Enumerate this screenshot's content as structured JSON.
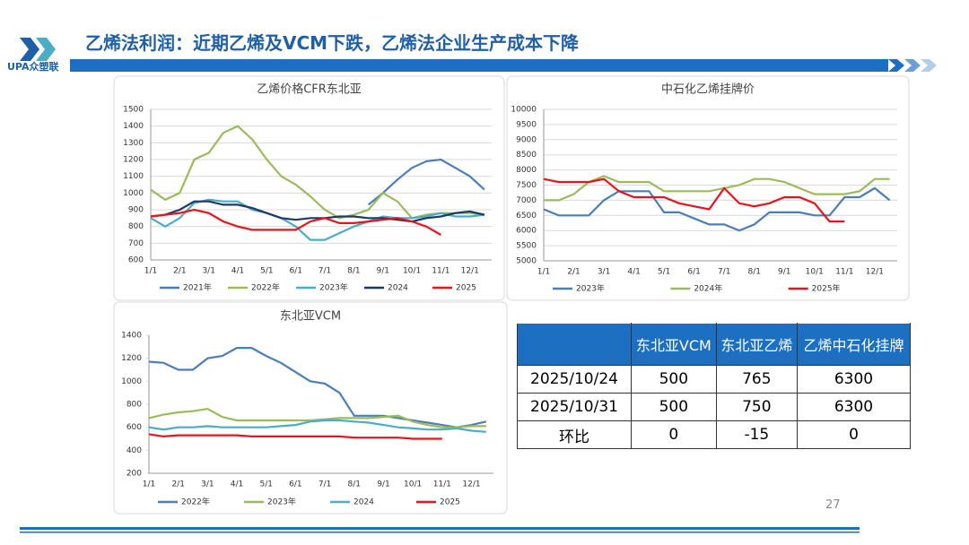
{
  "header": {
    "title": "乙烯法利润：近期乙烯及VCM下跌，乙烯法企业生产成本下降",
    "logo": "UPA众塑联"
  },
  "chart_data": [
    {
      "type": "line",
      "title": "乙烯价格CFR东北亚",
      "categories": [
        "1/1",
        null,
        "2/1",
        null,
        "3/1",
        null,
        "4/1",
        null,
        "5/1",
        null,
        "6/1",
        null,
        "7/1",
        null,
        "8/1",
        null,
        "9/1",
        null,
        "10/1",
        null,
        "11/1",
        null,
        "12/1",
        null
      ],
      "ylim": [
        600,
        1500
      ],
      "yticks": [
        600,
        700,
        800,
        900,
        1000,
        1100,
        1200,
        1300,
        1400,
        1500
      ],
      "grid": true,
      "legend": "bottom",
      "series": [
        {
          "name": "2021年",
          "color": "#4a7ebb",
          "values": [
            null,
            null,
            null,
            null,
            null,
            null,
            null,
            null,
            null,
            null,
            null,
            null,
            null,
            null,
            null,
            930,
            1000,
            1080,
            1150,
            1190,
            1200,
            1150,
            1100,
            1020
          ]
        },
        {
          "name": "2022年",
          "color": "#9bbb59",
          "values": [
            1020,
            960,
            1000,
            1200,
            1240,
            1360,
            1400,
            1320,
            1200,
            1100,
            1050,
            980,
            900,
            850,
            870,
            900,
            1000,
            950,
            850,
            870,
            880,
            880,
            880,
            870
          ]
        },
        {
          "name": "2023年",
          "color": "#4bacc6",
          "values": [
            850,
            800,
            850,
            940,
            960,
            950,
            950,
            900,
            880,
            850,
            800,
            720,
            720,
            760,
            800,
            830,
            860,
            850,
            850,
            860,
            880,
            860,
            860,
            870
          ]
        },
        {
          "name": "2024",
          "color": "#1f3864",
          "values": [
            860,
            870,
            900,
            950,
            950,
            930,
            930,
            910,
            880,
            850,
            840,
            850,
            850,
            860,
            860,
            850,
            850,
            840,
            830,
            850,
            860,
            880,
            890,
            870
          ]
        },
        {
          "name": "2025",
          "color": "#e8141b",
          "values": [
            860,
            870,
            880,
            900,
            880,
            830,
            800,
            780,
            780,
            780,
            780,
            830,
            850,
            820,
            820,
            830,
            840,
            850,
            830,
            800,
            750,
            null,
            null,
            null
          ]
        }
      ]
    },
    {
      "type": "line",
      "title": "中石化乙烯挂牌价",
      "categories": [
        "1/1",
        null,
        "2/1",
        null,
        "3/1",
        null,
        "4/1",
        null,
        "5/1",
        null,
        "6/1",
        null,
        "7/1",
        null,
        "8/1",
        null,
        "9/1",
        null,
        "10/1",
        null,
        "11/1",
        null,
        "12/1",
        null
      ],
      "ylim": [
        5000,
        10000
      ],
      "yticks": [
        5000,
        5500,
        6000,
        6500,
        7000,
        7500,
        8000,
        8500,
        9000,
        9500,
        10000
      ],
      "grid": true,
      "legend": "bottom",
      "series": [
        {
          "name": "2023年",
          "color": "#4a7ebb",
          "values": [
            6700,
            6500,
            6500,
            6500,
            7000,
            7300,
            7300,
            7300,
            6600,
            6600,
            6400,
            6200,
            6200,
            6000,
            6200,
            6600,
            6600,
            6600,
            6500,
            6500,
            7100,
            7100,
            7400,
            7000
          ]
        },
        {
          "name": "2024年",
          "color": "#9bbb59",
          "values": [
            7000,
            7000,
            7200,
            7600,
            7800,
            7600,
            7600,
            7600,
            7300,
            7300,
            7300,
            7300,
            7400,
            7500,
            7700,
            7700,
            7600,
            7400,
            7200,
            7200,
            7200,
            7300,
            7700,
            7700
          ]
        },
        {
          "name": "2025年",
          "color": "#e8141b",
          "values": [
            7700,
            7600,
            7600,
            7600,
            7700,
            7300,
            7100,
            7100,
            7100,
            6900,
            6800,
            6700,
            7400,
            6900,
            6800,
            6900,
            7100,
            7100,
            6900,
            6300,
            6300,
            null,
            null,
            null
          ]
        }
      ]
    },
    {
      "type": "line",
      "title": "东北亚VCM",
      "categories": [
        "1/1",
        null,
        "2/1",
        null,
        "3/1",
        null,
        "4/1",
        null,
        "5/1",
        null,
        "6/1",
        null,
        "7/1",
        null,
        "8/1",
        null,
        "9/1",
        null,
        "10/1",
        null,
        "11/1",
        null,
        "12/1",
        null
      ],
      "ylim": [
        200,
        1400
      ],
      "yticks": [
        200,
        400,
        600,
        800,
        1000,
        1200,
        1400
      ],
      "grid": false,
      "legend": "bottom",
      "series": [
        {
          "name": "2022年",
          "color": "#4a7ebb",
          "values": [
            1170,
            1160,
            1100,
            1100,
            1200,
            1220,
            1290,
            1290,
            1220,
            1160,
            1080,
            1000,
            980,
            900,
            700,
            700,
            700,
            680,
            660,
            640,
            620,
            600,
            620,
            650
          ]
        },
        {
          "name": "2023年",
          "color": "#9bbb59",
          "values": [
            680,
            710,
            730,
            740,
            760,
            690,
            660,
            660,
            660,
            660,
            660,
            660,
            670,
            680,
            680,
            680,
            690,
            700,
            650,
            620,
            600,
            600,
            610,
            610
          ]
        },
        {
          "name": "2024",
          "color": "#4bacc6",
          "values": [
            600,
            580,
            600,
            600,
            610,
            600,
            600,
            600,
            600,
            610,
            620,
            650,
            660,
            660,
            650,
            640,
            620,
            600,
            590,
            580,
            580,
            590,
            570,
            560
          ]
        },
        {
          "name": "2025",
          "color": "#e8141b",
          "values": [
            540,
            520,
            530,
            530,
            530,
            530,
            530,
            520,
            520,
            520,
            520,
            520,
            520,
            520,
            510,
            510,
            510,
            510,
            500,
            500,
            500,
            null,
            null,
            null
          ]
        }
      ]
    }
  ],
  "table": {
    "columns": [
      "东北亚VCM",
      "东北亚乙烯",
      "乙烯中石化挂牌"
    ],
    "rows": [
      [
        "2025/10/24",
        500,
        765,
        6300
      ],
      [
        "2025/10/31",
        500,
        750,
        6300
      ],
      [
        "环比",
        0,
        -15,
        0
      ]
    ]
  },
  "page_number": "27"
}
